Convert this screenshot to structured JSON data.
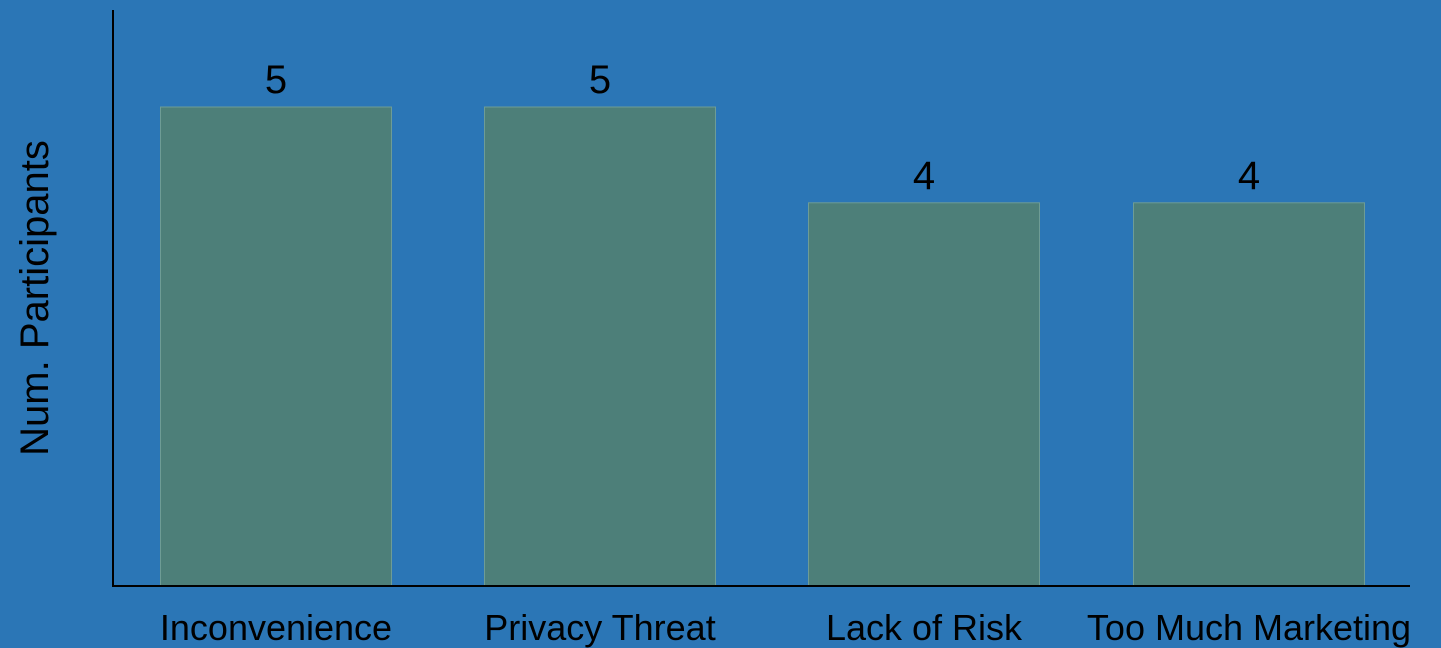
{
  "chart_data": {
    "type": "bar",
    "categories": [
      "Inconvenience",
      "Privacy Threat",
      "Lack of Risk",
      "Too Much Marketing"
    ],
    "values": [
      5,
      5,
      4,
      4
    ],
    "data_labels": [
      "5",
      "5",
      "4",
      "4"
    ],
    "title": "",
    "xlabel": "",
    "ylabel": "Num. Participants",
    "ylim": [
      0,
      6
    ],
    "grid": false,
    "legend": "none"
  },
  "colors": {
    "background": "#2B76B6",
    "bar_fill": "#4D7F79",
    "bar_stroke": "#6E9C95",
    "axis": "#000000",
    "text": "#000000"
  }
}
